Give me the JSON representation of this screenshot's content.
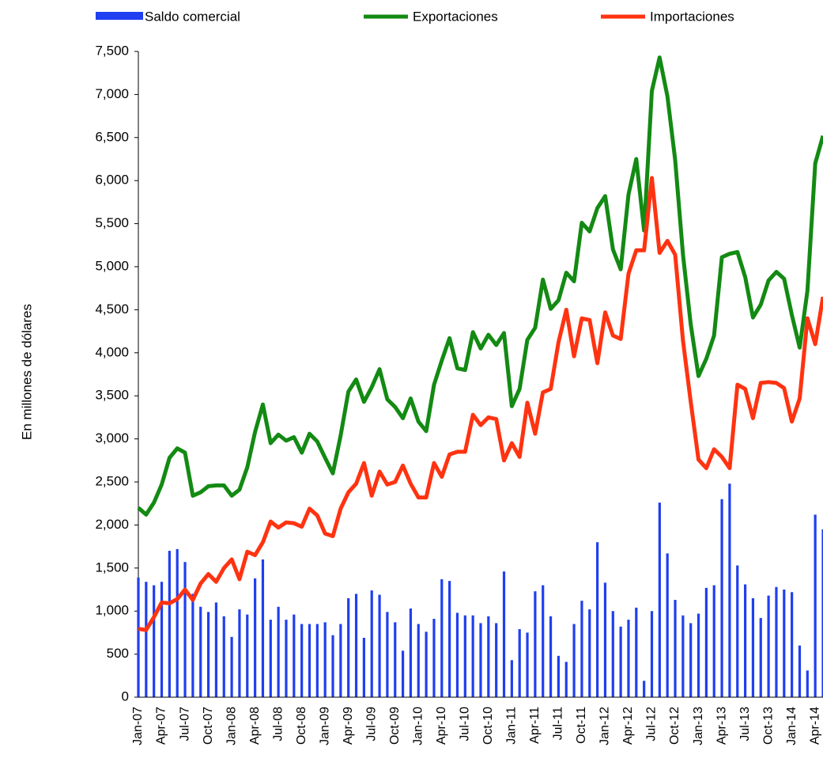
{
  "chart_data": {
    "type": "bar-line",
    "y_label": "En millones de dólares",
    "categories": [
      "Jan-07",
      null,
      null,
      "Apr-07",
      null,
      null,
      "Jul-07",
      null,
      null,
      "Oct-07",
      null,
      null,
      "Jan-08",
      null,
      null,
      "Apr-08",
      null,
      null,
      "Jul-08",
      null,
      null,
      "Oct-08",
      null,
      null,
      "Jan-09",
      null,
      null,
      "Apr-09",
      null,
      null,
      "Jul-09",
      null,
      null,
      "Oct-09",
      null,
      null,
      "Jan-10",
      null,
      null,
      "Apr-10",
      null,
      null,
      "Jul-10",
      null,
      null,
      "Oct-10",
      null,
      null,
      "Jan-11",
      null,
      null,
      "Apr-11",
      null,
      null,
      "Jul-11",
      null,
      null,
      "Oct-11",
      null,
      null,
      "Jan-12",
      null,
      null,
      "Apr-12",
      null,
      null,
      "Jul-12",
      null,
      null,
      "Oct-12",
      null,
      null,
      "Jan-13",
      null,
      null,
      "Apr-13",
      null,
      null,
      "Jul-13",
      null,
      null,
      "Oct-13",
      null,
      null,
      "Jan-14",
      null,
      null,
      "Apr-14",
      null
    ],
    "series": [
      {
        "name": "Saldo comercial",
        "kind": "bar",
        "color": "#1f3ff0",
        "values": [
          1390,
          1340,
          1300,
          1340,
          1700,
          1720,
          1570,
          1200,
          1050,
          990,
          1100,
          940,
          700,
          1020,
          960,
          1380,
          1600,
          900,
          1050,
          900,
          960,
          850,
          850,
          850,
          870,
          720,
          850,
          1150,
          1200,
          690,
          1240,
          1190,
          990,
          870,
          540,
          1030,
          850,
          760,
          910,
          1370,
          1350,
          980,
          950,
          950,
          860,
          940,
          860,
          1460,
          430,
          790,
          750,
          1230,
          1300,
          940,
          480,
          410,
          850,
          1120,
          1020,
          1800,
          1330,
          1000,
          820,
          900,
          1040,
          190,
          1000,
          2260,
          1670,
          1130,
          950,
          860,
          970,
          1270,
          1300,
          2300,
          2480,
          1530,
          1310,
          1150,
          920,
          1180,
          1280,
          1250,
          1220,
          600,
          310,
          2120,
          1950
        ]
      },
      {
        "name": "Exportaciones",
        "kind": "line",
        "color": "#138a13",
        "values": [
          2200,
          2120,
          2260,
          2470,
          2780,
          2890,
          2840,
          2340,
          2380,
          2450,
          2460,
          2460,
          2340,
          2410,
          2670,
          3080,
          3400,
          2950,
          3050,
          2980,
          3020,
          2840,
          3060,
          2970,
          2780,
          2600,
          3040,
          3550,
          3690,
          3430,
          3600,
          3810,
          3460,
          3370,
          3240,
          3470,
          3200,
          3090,
          3630,
          3910,
          4170,
          3820,
          3800,
          4240,
          4050,
          4210,
          4090,
          4230,
          3380,
          3580,
          4150,
          4290,
          4850,
          4510,
          4610,
          4930,
          4830,
          5510,
          5410,
          5680,
          5820,
          5200,
          4970,
          5840,
          6250,
          5420,
          7040,
          7430,
          6980,
          6240,
          5140,
          4330,
          3730,
          3930,
          4200,
          5110,
          5150,
          5170,
          4880,
          4410,
          4560,
          4840,
          4940,
          4860,
          4440,
          4060,
          4720,
          6200,
          6520
        ]
      },
      {
        "name": "Importaciones",
        "kind": "line",
        "color": "#ff3311",
        "values": [
          795,
          780,
          930,
          1100,
          1090,
          1140,
          1250,
          1130,
          1320,
          1430,
          1340,
          1500,
          1600,
          1370,
          1690,
          1650,
          1800,
          2040,
          1970,
          2030,
          2020,
          1980,
          2190,
          2110,
          1900,
          1870,
          2190,
          2380,
          2480,
          2720,
          2340,
          2620,
          2470,
          2500,
          2690,
          2480,
          2320,
          2320,
          2720,
          2560,
          2820,
          2850,
          2850,
          3280,
          3160,
          3250,
          3230,
          2750,
          2950,
          2790,
          3420,
          3060,
          3540,
          3580,
          4120,
          4500,
          3960,
          4400,
          4380,
          3880,
          4470,
          4200,
          4160,
          4920,
          5190,
          5190,
          6030,
          5160,
          5300,
          5140,
          4140,
          3430,
          2760,
          2660,
          2880,
          2790,
          2660,
          3630,
          3580,
          3240,
          3650,
          3660,
          3650,
          3590,
          3200,
          3470,
          4400,
          4100,
          4650
        ]
      }
    ],
    "ylim": [
      0,
      7500
    ],
    "yticks": [
      0,
      500,
      {
        "value": 1000,
        "label": "1,000"
      },
      {
        "value": 1500,
        "label": "1,500"
      },
      {
        "value": 2000,
        "label": "2,000"
      },
      {
        "value": 2500,
        "label": "2,500"
      },
      {
        "value": 3000,
        "label": "3,000"
      },
      {
        "value": 3500,
        "label": "3,500"
      },
      {
        "value": 4000,
        "label": "4,000"
      },
      {
        "value": 4500,
        "label": "4,500"
      },
      {
        "value": 5000,
        "label": "5,000"
      },
      {
        "value": 5500,
        "label": "5,500"
      },
      {
        "value": 6000,
        "label": "6,000"
      },
      {
        "value": 6500,
        "label": "6,500"
      },
      {
        "value": 7000,
        "label": "7,000"
      },
      {
        "value": 7500,
        "label": "7,500"
      }
    ],
    "legend": "top"
  }
}
